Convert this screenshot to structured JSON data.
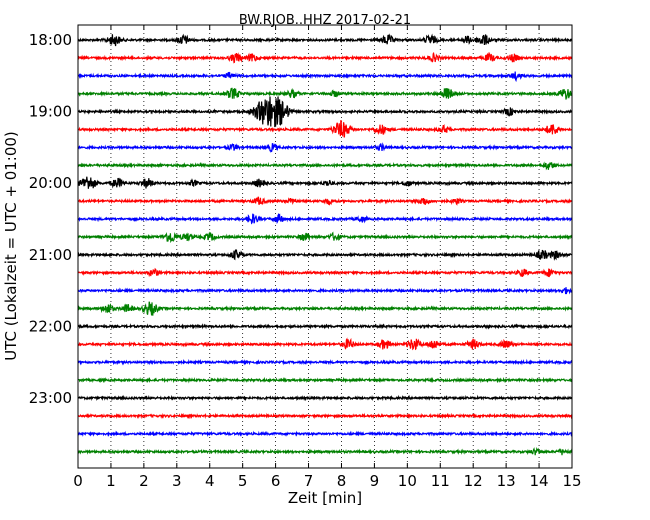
{
  "chart_data": {
    "type": "line",
    "title": "BW.RJOB..HHZ 2017-02-21",
    "xlabel": "Zeit  [min]",
    "ylabel": "UTC (Lokalzeit = UTC + 01:00)",
    "xlim": [
      0,
      15
    ],
    "x_ticks": [
      0,
      1,
      2,
      3,
      4,
      5,
      6,
      7,
      8,
      9,
      10,
      11,
      12,
      13,
      14,
      15
    ],
    "y_tick_labels": [
      "18:00",
      "19:00",
      "20:00",
      "21:00",
      "22:00",
      "23:00"
    ],
    "grid": "vertical-dotted",
    "row_minutes": 15,
    "colors": [
      "#000000",
      "#ff0000",
      "#0000ff",
      "#008000"
    ],
    "series": [
      {
        "start": "18:00",
        "events": [
          [
            1.1,
            0.6
          ],
          [
            3.2,
            0.5
          ],
          [
            9.4,
            0.5
          ],
          [
            10.7,
            0.5
          ],
          [
            11.8,
            0.4
          ],
          [
            12.3,
            0.6
          ]
        ]
      },
      {
        "start": "18:15",
        "events": [
          [
            4.8,
            0.5
          ],
          [
            5.3,
            0.4
          ],
          [
            10.8,
            0.4
          ],
          [
            12.5,
            0.4
          ],
          [
            13.2,
            0.4
          ]
        ]
      },
      {
        "start": "18:30",
        "events": [
          [
            4.6,
            0.3
          ],
          [
            13.3,
            0.4
          ]
        ]
      },
      {
        "start": "18:45",
        "events": [
          [
            4.7,
            0.6
          ],
          [
            6.5,
            0.4
          ],
          [
            7.8,
            0.3
          ],
          [
            11.2,
            0.6
          ],
          [
            14.8,
            0.6
          ]
        ]
      },
      {
        "start": "19:00",
        "events": [
          [
            5.8,
            1.8
          ],
          [
            6.2,
            0.7
          ],
          [
            13.1,
            0.4
          ]
        ]
      },
      {
        "start": "19:15",
        "events": [
          [
            8.0,
            0.9
          ],
          [
            9.2,
            0.5
          ],
          [
            11.1,
            0.4
          ],
          [
            14.4,
            0.6
          ]
        ]
      },
      {
        "start": "19:30",
        "events": [
          [
            4.7,
            0.3
          ],
          [
            5.9,
            0.4
          ],
          [
            9.2,
            0.3
          ]
        ]
      },
      {
        "start": "19:45",
        "events": [
          [
            14.3,
            0.4
          ]
        ]
      },
      {
        "start": "20:00",
        "events": [
          [
            0.3,
            0.8
          ],
          [
            1.2,
            0.5
          ],
          [
            2.1,
            0.5
          ],
          [
            3.5,
            0.3
          ],
          [
            5.5,
            0.4
          ],
          [
            7.6,
            0.3
          ],
          [
            10.0,
            0.3
          ]
        ]
      },
      {
        "start": "20:15",
        "events": [
          [
            5.5,
            0.4
          ],
          [
            6.5,
            0.3
          ],
          [
            7.6,
            0.3
          ],
          [
            10.5,
            0.4
          ],
          [
            11.5,
            0.3
          ]
        ]
      },
      {
        "start": "20:30",
        "events": [
          [
            5.3,
            0.5
          ],
          [
            6.1,
            0.4
          ],
          [
            8.6,
            0.3
          ]
        ]
      },
      {
        "start": "20:45",
        "events": [
          [
            2.8,
            0.6
          ],
          [
            3.3,
            0.4
          ],
          [
            4.0,
            0.4
          ],
          [
            6.9,
            0.4
          ],
          [
            7.8,
            0.4
          ]
        ]
      },
      {
        "start": "21:00",
        "events": [
          [
            4.8,
            0.5
          ],
          [
            14.1,
            0.5
          ],
          [
            14.5,
            0.4
          ]
        ]
      },
      {
        "start": "21:15",
        "events": [
          [
            2.3,
            0.4
          ],
          [
            13.5,
            0.4
          ],
          [
            14.3,
            0.4
          ]
        ]
      },
      {
        "start": "21:30",
        "events": [
          [
            14.8,
            0.3
          ]
        ]
      },
      {
        "start": "21:45",
        "events": [
          [
            0.9,
            0.5
          ],
          [
            1.5,
            0.4
          ],
          [
            2.2,
            0.7
          ]
        ]
      },
      {
        "start": "22:00",
        "events": []
      },
      {
        "start": "22:15",
        "events": [
          [
            8.2,
            0.5
          ],
          [
            9.3,
            0.5
          ],
          [
            10.2,
            0.6
          ],
          [
            10.8,
            0.5
          ],
          [
            12.0,
            0.5
          ],
          [
            13.0,
            0.4
          ]
        ]
      },
      {
        "start": "22:30",
        "events": []
      },
      {
        "start": "22:45",
        "events": []
      },
      {
        "start": "23:00",
        "events": []
      },
      {
        "start": "23:15",
        "events": []
      },
      {
        "start": "23:30",
        "events": []
      },
      {
        "start": "23:45",
        "events": [
          [
            13.9,
            0.3
          ],
          [
            14.7,
            0.3
          ]
        ]
      }
    ]
  }
}
